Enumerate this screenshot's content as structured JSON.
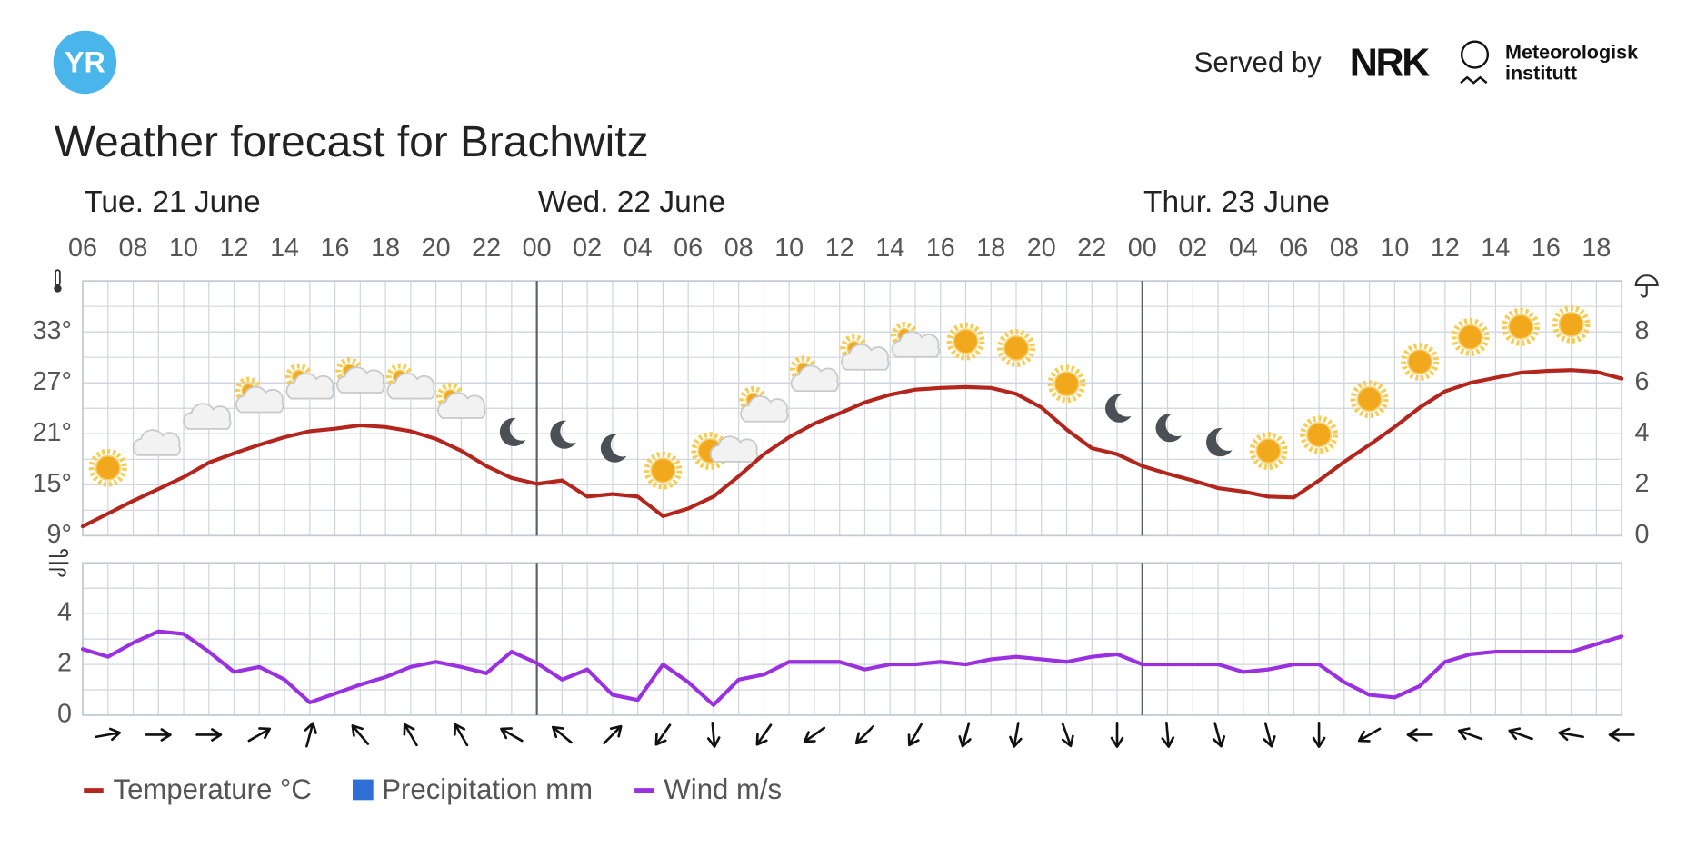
{
  "header": {
    "logo": "YR",
    "served_by": "Served by",
    "nrk": "NRK",
    "met": [
      "Meteorologisk",
      "institutt"
    ]
  },
  "chart_data": [
    {
      "type": "line",
      "title": "Weather forecast for Brachwitz",
      "days": [
        "Tue. 21 June",
        "Wed. 22 June",
        "Thur. 23 June"
      ],
      "categories": [
        "06",
        null,
        "08",
        null,
        "10",
        null,
        "12",
        null,
        "14",
        null,
        "16",
        null,
        "18",
        null,
        "20",
        null,
        "22",
        null,
        "00",
        null,
        "02",
        null,
        "04",
        null,
        "06",
        null,
        "08",
        null,
        "10",
        null,
        "12",
        null,
        "14",
        null,
        "16",
        null,
        "18",
        null,
        "20",
        null,
        "22",
        null,
        "00",
        null,
        "02",
        null,
        "04",
        null,
        "06",
        null,
        "08",
        null,
        "10",
        null,
        "12",
        null,
        "14",
        null,
        "16",
        null,
        "18",
        null
      ],
      "ylim": [
        9,
        39
      ],
      "yticks": [
        {
          "value": 9,
          "label": "9°"
        },
        {
          "value": 15,
          "label": "15°"
        },
        {
          "value": 21,
          "label": "21°"
        },
        {
          "value": 27,
          "label": "27°"
        },
        {
          "value": 33,
          "label": "33°"
        }
      ],
      "y2lim": [
        0,
        10
      ],
      "y2ticks": [
        0,
        2,
        4,
        6,
        8
      ],
      "grid": true,
      "series": [
        {
          "name": "Temperature °C",
          "color": "#b3261e",
          "values": [
            10.1,
            11.6,
            13.1,
            14.5,
            15.9,
            17.6,
            18.7,
            19.7,
            20.6,
            21.3,
            21.6,
            22.0,
            21.8,
            21.3,
            20.4,
            19.0,
            17.2,
            15.8,
            15.1,
            15.5,
            13.6,
            13.9,
            13.6,
            11.3,
            12.2,
            13.6,
            16.0,
            18.6,
            20.6,
            22.2,
            23.4,
            24.7,
            25.6,
            26.2,
            26.4,
            26.5,
            26.4,
            25.7,
            24.1,
            21.5,
            19.3,
            18.6,
            17.2,
            16.3,
            15.5,
            14.6,
            14.2,
            13.6,
            13.5,
            15.5,
            17.7,
            19.7,
            21.8,
            24.1,
            26.0,
            27.0,
            27.6,
            28.2,
            28.4,
            28.5,
            28.3,
            27.5
          ]
        },
        {
          "name": "Precipitation mm",
          "color": "#2f6fd6",
          "type": "bar",
          "axis": "y2",
          "values": [
            0,
            0,
            0,
            0,
            0,
            0,
            0,
            0,
            0,
            0,
            0,
            0,
            0,
            0,
            0,
            0,
            0,
            0,
            0,
            0,
            0,
            0,
            0,
            0,
            0,
            0,
            0,
            0,
            0,
            0,
            0,
            0,
            0,
            0,
            0,
            0,
            0,
            0,
            0,
            0,
            0,
            0,
            0,
            0,
            0,
            0,
            0,
            0,
            0,
            0,
            0,
            0,
            0,
            0,
            0,
            0,
            0,
            0,
            0,
            0,
            0,
            0
          ]
        }
      ]
    },
    {
      "type": "line",
      "ylim": [
        0,
        6
      ],
      "yticks": [
        0,
        2,
        4
      ],
      "grid": true,
      "series": [
        {
          "name": "Wind m/s",
          "color": "#9b30e0",
          "values": [
            2.6,
            2.3,
            2.85,
            3.3,
            3.2,
            2.5,
            1.7,
            1.9,
            1.4,
            0.5,
            0.85,
            1.2,
            1.5,
            1.9,
            2.1,
            1.9,
            1.65,
            2.5,
            2.05,
            1.4,
            1.8,
            0.8,
            0.6,
            2.0,
            1.3,
            0.4,
            1.4,
            1.6,
            2.1,
            2.1,
            2.1,
            1.8,
            2.0,
            2.0,
            2.1,
            2.0,
            2.2,
            2.3,
            2.2,
            2.1,
            2.3,
            2.4,
            2.0,
            2.0,
            2.0,
            2.0,
            1.7,
            1.8,
            2.0,
            2.0,
            1.3,
            0.8,
            0.7,
            1.15,
            2.1,
            2.4,
            2.5,
            2.5,
            2.5,
            2.5,
            2.8,
            3.1
          ]
        }
      ],
      "wind_direction": [
        null,
        80,
        null,
        90,
        null,
        90,
        null,
        60,
        null,
        15,
        null,
        320,
        null,
        330,
        null,
        330,
        null,
        300,
        null,
        310,
        null,
        45,
        null,
        215,
        null,
        175,
        null,
        215,
        null,
        235,
        null,
        225,
        null,
        210,
        null,
        195,
        null,
        190,
        null,
        160,
        null,
        180,
        null,
        175,
        null,
        165,
        null,
        165,
        null,
        180,
        null,
        240,
        null,
        270,
        null,
        290,
        null,
        290,
        null,
        280,
        null,
        270
      ]
    }
  ]
}
